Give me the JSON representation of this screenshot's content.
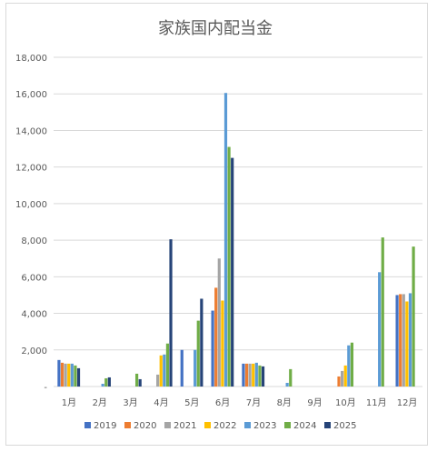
{
  "chart_data": {
    "type": "bar",
    "title": "家族国内配当金",
    "xlabel": "",
    "ylabel": "",
    "ylim": [
      0,
      18000
    ],
    "yticks": [
      "-",
      "2,000",
      "4,000",
      "6,000",
      "8,000",
      "10,000",
      "12,000",
      "14,000",
      "16,000",
      "18,000"
    ],
    "grid": true,
    "legend": "bottom",
    "categories": [
      "1月",
      "2月",
      "3月",
      "4月",
      "5月",
      "6月",
      "7月",
      "8月",
      "9月",
      "10月",
      "11月",
      "12月"
    ],
    "series": [
      {
        "name": "2019",
        "color": "#4472c4",
        "values": [
          1450,
          0,
          0,
          0,
          2000,
          4150,
          1250,
          0,
          0,
          0,
          0,
          5000
        ]
      },
      {
        "name": "2020",
        "color": "#ed7d31",
        "values": [
          1300,
          0,
          0,
          0,
          0,
          5400,
          1250,
          0,
          0,
          550,
          0,
          5050
        ]
      },
      {
        "name": "2021",
        "color": "#a5a5a5",
        "values": [
          1250,
          0,
          0,
          650,
          0,
          7000,
          1250,
          0,
          0,
          850,
          0,
          5050
        ]
      },
      {
        "name": "2022",
        "color": "#ffc000",
        "values": [
          1250,
          0,
          0,
          1700,
          0,
          4700,
          1250,
          0,
          0,
          1150,
          0,
          4650
        ]
      },
      {
        "name": "2023",
        "color": "#5b9bd5",
        "values": [
          1250,
          150,
          0,
          1750,
          2000,
          16050,
          1300,
          200,
          0,
          2250,
          6250,
          5100
        ]
      },
      {
        "name": "2024",
        "color": "#70ad47",
        "values": [
          1150,
          450,
          700,
          2350,
          3600,
          13100,
          1150,
          950,
          0,
          2400,
          8150,
          7650
        ]
      },
      {
        "name": "2025",
        "color": "#264478",
        "values": [
          1000,
          500,
          400,
          8050,
          4800,
          12500,
          1100,
          0,
          0,
          0,
          0,
          0
        ]
      }
    ]
  }
}
